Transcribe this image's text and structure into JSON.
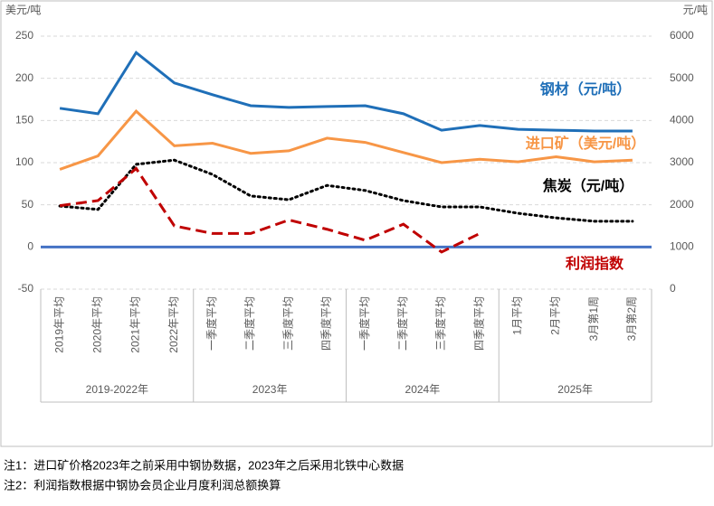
{
  "chart_data": {
    "type": "line",
    "y_label": "美元/吨",
    "y2_label": "元/吨",
    "categories": [
      "2019年平均",
      "2020年平均",
      "2021年平均",
      "2022年平均",
      "一季度平均",
      "二季度平均",
      "三季度平均",
      "四季度平均",
      "一季度平均",
      "二季度平均",
      "三季度平均",
      "四季度平均",
      "1月平均",
      "2月平均",
      "3月第1周",
      "3月第2周"
    ],
    "groups": [
      {
        "label": "2019-2022年",
        "size": 4
      },
      {
        "label": "2023年",
        "size": 4
      },
      {
        "label": "2024年",
        "size": 4
      },
      {
        "label": "2025年",
        "size": 4
      }
    ],
    "ylim": [
      -50,
      250
    ],
    "yticks": [
      -50,
      0,
      50,
      100,
      150,
      200,
      250
    ],
    "y2lim": [
      0,
      6000
    ],
    "y2ticks": [
      0,
      1000,
      2000,
      3000,
      4000,
      5000,
      6000
    ],
    "grid": true,
    "series": [
      {
        "name": "钢材（元/吨）",
        "color": "#1f6fb8",
        "dash": "solid",
        "axis": "y2",
        "values": [
          4290,
          4160,
          5610,
          4890,
          4610,
          4350,
          4310,
          4330,
          4350,
          4160,
          3770,
          3880,
          3790,
          3770,
          3750,
          3750
        ]
      },
      {
        "name": "进口矿（美元/吨）",
        "color": "#f79646",
        "dash": "solid",
        "values": [
          92,
          108,
          161,
          120,
          123,
          111,
          114,
          129,
          124,
          112,
          100,
          104,
          101,
          107,
          101,
          103
        ]
      },
      {
        "name": "焦炭（元/吨）",
        "color": "#000000",
        "dash": "dotted",
        "axis": "y2",
        "values": [
          1970,
          1890,
          2960,
          3060,
          2720,
          2210,
          2120,
          2460,
          2340,
          2100,
          1950,
          1950,
          1800,
          1690,
          1610,
          1610
        ]
      },
      {
        "name": "利润指数",
        "color": "#c00000",
        "dash": "dashed",
        "values": [
          49,
          55,
          93,
          25,
          16,
          16,
          32,
          21,
          8,
          27,
          -6,
          16,
          null,
          null,
          null,
          null
        ]
      }
    ],
    "notes": [
      "注1：进口矿价格2023年之前采用中钢协数据，2023年之后采用北铁中心数据",
      "注2：利润指数根据中钢协会员企业月度利润总额换算"
    ]
  }
}
